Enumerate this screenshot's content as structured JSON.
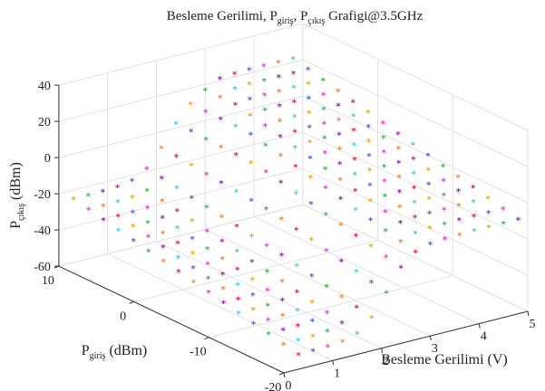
{
  "chart_data": {
    "type": "scatter",
    "title": {
      "prefix": "Besleme Gerilimi, P",
      "sub1": "giriş",
      "mid": ", P",
      "sub2": "çıkış",
      "suffix": " Grafigi@3.5GHz"
    },
    "xlabel": "Besleme Gerilimi (V)",
    "ylabel": {
      "base": "P",
      "sub": "giriş",
      "unit": " (dBm)"
    },
    "zlabel": {
      "base": "P",
      "sub": "çıkış",
      "unit": " (dBm)"
    },
    "x_ticks": [
      "0",
      "1",
      "2",
      "3",
      "4",
      "5"
    ],
    "y_ticks": [
      "10",
      "0",
      "-10",
      "-20"
    ],
    "z_ticks": [
      "40",
      "20",
      "0",
      "-20",
      "-40",
      "-60"
    ],
    "xlim": [
      0,
      5
    ],
    "ylim": [
      -20,
      10
    ],
    "zlim": [
      -60,
      40
    ],
    "grid": true,
    "marker": "*",
    "series_colors": [
      "#e6194b",
      "#f58231",
      "#3cb44b",
      "#4363d8",
      "#46c8e8",
      "#911eb4",
      "#f032e6",
      "#e6a817"
    ],
    "voltage_x": [
      0.3,
      0.6,
      0.9,
      1.2,
      1.5,
      1.8,
      2.1,
      2.4,
      2.7,
      3.0,
      3.3,
      3.6,
      3.9,
      4.2,
      4.5,
      4.8
    ],
    "pin_y": [
      -20,
      -18,
      -16,
      -14,
      -12,
      -10,
      -8,
      -6,
      -4,
      -2,
      0,
      2,
      4,
      6,
      8,
      10
    ],
    "pout_model": {
      "gain_dB": 12,
      "sat_start_dBm": -18,
      "sat_per_volt_dB": 12,
      "knee_volt": 2.1,
      "knee_width_volt": 0.25,
      "off_level_dBm": -52,
      "off_slope": 0.9
    }
  }
}
